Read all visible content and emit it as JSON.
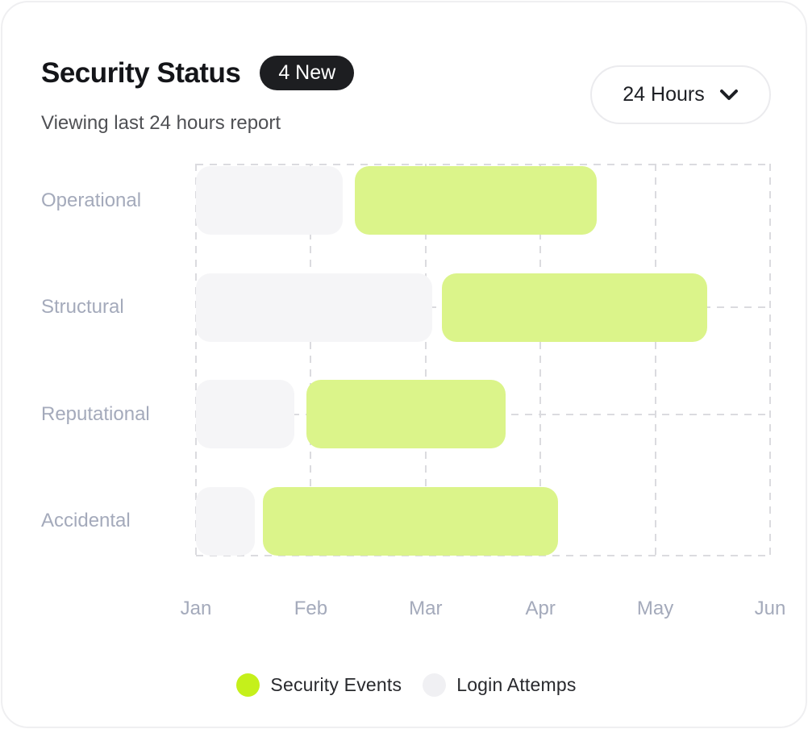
{
  "header": {
    "title": "Security Status",
    "badge": "4 New",
    "subtitle": "Viewing last 24 hours report",
    "range_selector": {
      "value": "24 Hours",
      "icon": "chevron-down-icon"
    }
  },
  "chart_data": {
    "type": "bar",
    "variant": "horizontal-gantt",
    "title": "Security Status",
    "categories": [
      "Operational",
      "Structural",
      "Reputational",
      "Accidental"
    ],
    "x_ticks": [
      "Jan",
      "Feb",
      "Mar",
      "Apr",
      "May",
      "Jun"
    ],
    "x_range_months": [
      0,
      5
    ],
    "grid": {
      "style": "dashed",
      "line_color": "#DBDBDF",
      "vertical_lines_at_ticks": true,
      "top_border": true,
      "bottom_border": true,
      "horizontal_midline_rows": [
        "Structural",
        "Reputational"
      ]
    },
    "series": [
      {
        "name": "Login Attemps",
        "color": "#F5F5F7",
        "spans_months": [
          [
            0,
            1.28
          ],
          [
            0,
            2.06
          ],
          [
            0,
            0.86
          ],
          [
            0,
            0.51
          ]
        ]
      },
      {
        "name": "Security Events",
        "color": "#DBF48A",
        "spans_months": [
          [
            1.38,
            3.49
          ],
          [
            2.14,
            4.45
          ],
          [
            0.96,
            2.7
          ],
          [
            0.58,
            3.15
          ]
        ]
      }
    ]
  },
  "legend": [
    {
      "label": "Security Events",
      "color": "#C5F01B"
    },
    {
      "label": "Login Attemps",
      "color": "#F0F0F3"
    }
  ],
  "colors": {
    "badge_bg": "#1D1E21",
    "title_text": "#141519",
    "muted_label": "#A4AABB",
    "card_border": "#EFEFF1"
  }
}
